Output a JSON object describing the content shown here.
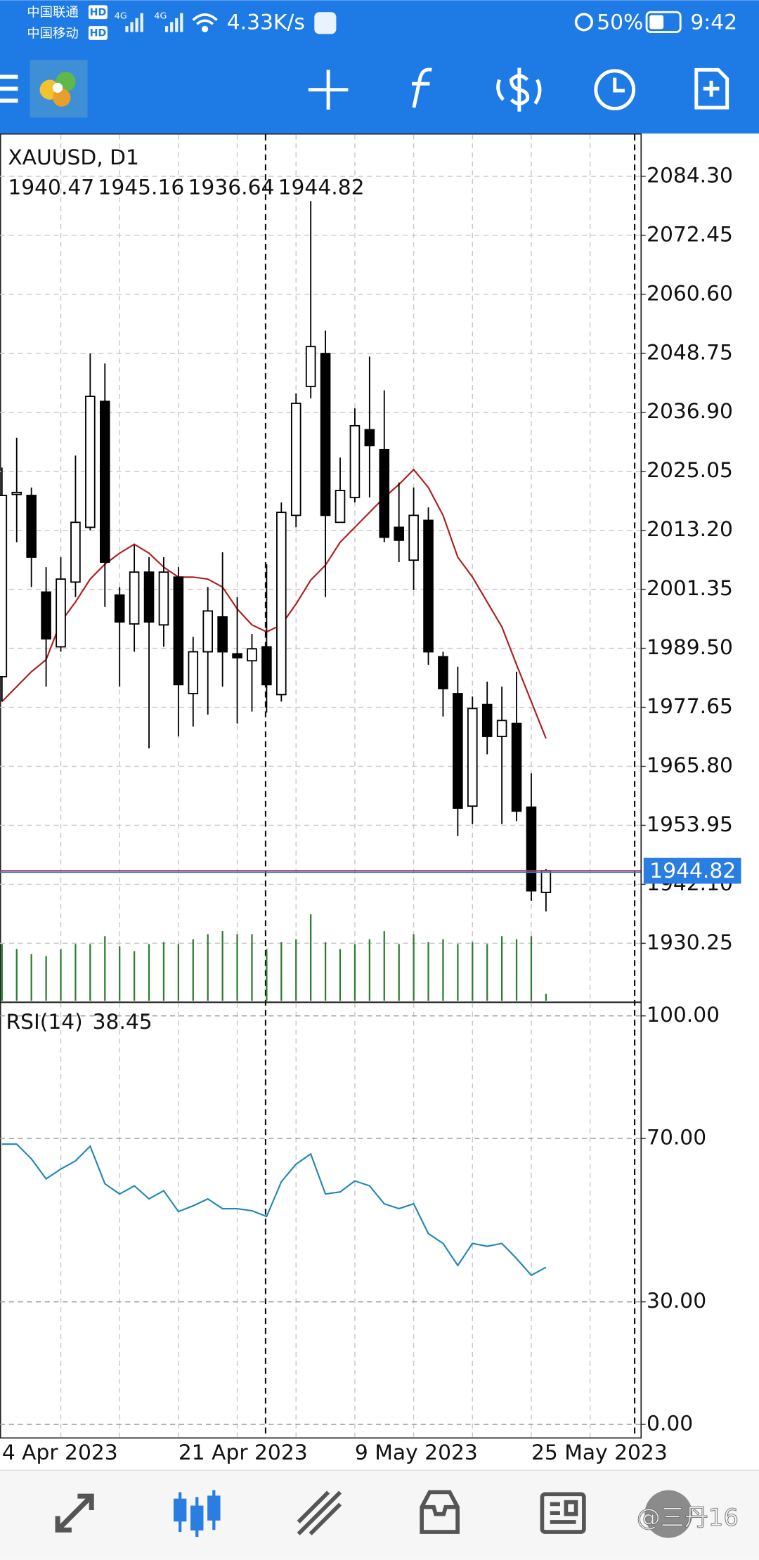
{
  "status_bar": {
    "carrier_1": "中国联通",
    "carrier_2": "中国移动",
    "hd_1": "HD",
    "hd_2": "HD",
    "network_1": "4G",
    "network_2": "4G",
    "speed": "4.33K/s",
    "battery": "50%",
    "time": "9:42"
  },
  "chart_data": [
    {
      "type": "candlestick",
      "title": "XAUUSD, D1",
      "categories": [
        "4 Apr 2023",
        null,
        null,
        null,
        null,
        null,
        null,
        null,
        null,
        null,
        null,
        null,
        "21 Apr 2023",
        null,
        null,
        null,
        null,
        null,
        null,
        null,
        null,
        null,
        null,
        null,
        "9 May 2023",
        null,
        null,
        null,
        null,
        null,
        null,
        null,
        null,
        null,
        null,
        null,
        "25 May 2023",
        null
      ],
      "open": [
        1983.8,
        2020.4,
        2020.2,
        2000.8,
        1989.8,
        2002.8,
        2013.8,
        2039.1,
        2000.2,
        1994.4,
        2004.8,
        1994.2,
        2003.8,
        1980.4,
        1988.8,
        1995.8,
        1988.4,
        1987.0,
        1989.8,
        1980.2,
        2016.2,
        2042.1,
        2048.7,
        2014.8,
        2019.8,
        2033.4,
        2029.4,
        2013.8,
        2007.2,
        2015.2,
        1987.8,
        1980.4,
        1957.8,
        1978.2,
        1971.8,
        1974.4,
        1957.6,
        1940.47
      ],
      "high": [
        2025.8,
        2031.8,
        2021.8,
        2005.8,
        2007.8,
        2028.2,
        2048.7,
        2046.7,
        2001.8,
        2010.2,
        2007.8,
        2007.8,
        2005.8,
        1991.8,
        2001.8,
        2008.8,
        1999.8,
        1992.4,
        2006.4,
        2018.8,
        2040.7,
        2079.3,
        2053.3,
        2027.8,
        2037.7,
        2048.1,
        2041.3,
        2022.8,
        2021.8,
        2017.8,
        1988.8,
        1985.8,
        1979.8,
        1982.8,
        1981.8,
        1984.8,
        1964.4,
        1945.16
      ],
      "low": [
        1978.8,
        2010.8,
        2001.8,
        1981.8,
        1988.8,
        1999.8,
        2013.2,
        1997.8,
        1981.8,
        1988.8,
        1969.4,
        1989.8,
        1971.8,
        1973.8,
        1976.2,
        1981.8,
        1974.4,
        1976.8,
        1976.6,
        1978.8,
        2013.8,
        2039.7,
        1999.8,
        2014.8,
        2018.8,
        2019.8,
        2010.8,
        2006.8,
        2001.2,
        1986.2,
        1975.8,
        1951.8,
        1954.2,
        1968.2,
        1954.2,
        1954.8,
        1938.8,
        1936.64
      ],
      "close": [
        2020.2,
        2020.8,
        2007.8,
        1991.4,
        2003.4,
        2014.8,
        2040.1,
        2006.8,
        1994.8,
        2004.8,
        1994.8,
        2004.8,
        1982.2,
        1988.8,
        1997.0,
        1988.8,
        1987.6,
        1989.4,
        1982.2,
        2016.8,
        2038.7,
        2050.1,
        2016.2,
        2021.2,
        2034.2,
        2030.2,
        2011.8,
        2011.2,
        2016.2,
        1988.8,
        1981.4,
        1957.4,
        1977.4,
        1971.8,
        1975.0,
        1956.8,
        1940.8,
        1944.82
      ],
      "color_up": "#ffffff",
      "color_down": "#000000",
      "moving_average": {
        "color": "#b01c1c",
        "values": [
          1978.8,
          1981.8,
          1984.8,
          1987.2,
          1994.8,
          1998.8,
          2003.4,
          2006.4,
          2008.6,
          2010.4,
          2008.6,
          2005.8,
          2003.8,
          2003.8,
          2003.4,
          2001.8,
          1997.4,
          1994.2,
          1992.8,
          1994.2,
          1998.4,
          2003.2,
          2006.2,
          2010.8,
          2013.8,
          2016.8,
          2019.8,
          2022.4,
          2025.4,
          2021.8,
          2016.2,
          2007.8,
          2003.8,
          1998.8,
          1993.8,
          1986.2,
          1978.8,
          1971.4
        ]
      },
      "volume": {
        "color": "#2e7d32",
        "values": [
          57,
          52,
          47,
          45,
          52,
          57,
          57,
          65,
          55,
          50,
          57,
          59,
          57,
          62,
          67,
          70,
          67,
          67,
          52,
          59,
          62,
          87,
          59,
          52,
          57,
          62,
          70,
          57,
          67,
          59,
          62,
          57,
          59,
          57,
          65,
          62,
          65,
          7
        ]
      },
      "price_line_color": "#2a7de1",
      "ylim": [
        1918.5,
        2092.7
      ],
      "yticks": [
        {
          "value": 2084.3,
          "label": "2084.30"
        },
        2072.45,
        {
          "value": 2060.6,
          "label": "2060.60"
        },
        2048.75,
        {
          "value": 2036.9,
          "label": "2036.90"
        },
        2025.05,
        {
          "value": 2013.2,
          "label": "2013.20"
        },
        2001.35,
        {
          "value": 1989.5,
          "label": "1989.50"
        },
        1977.65,
        {
          "value": 1965.8,
          "label": "1965.80"
        },
        1953.95,
        {
          "value": 1942.1,
          "label": "1942.10"
        },
        1930.25
      ],
      "grid": true
    },
    {
      "type": "line",
      "series": [
        {
          "name": "RSI(14)",
          "color": "#1f86b8",
          "values": [
            68.6,
            68.6,
            65.0,
            60.1,
            62.5,
            64.5,
            68.1,
            58.9,
            56.4,
            58.4,
            55.2,
            57.2,
            52.1,
            53.5,
            55.2,
            52.8,
            52.8,
            52.3,
            50.9,
            59.4,
            63.7,
            66.2,
            56.4,
            56.9,
            59.6,
            58.4,
            54.0,
            52.8,
            54.0,
            46.7,
            44.3,
            38.9,
            44.3,
            43.6,
            44.3,
            40.6,
            36.5,
            38.45
          ]
        }
      ],
      "ylim": [
        -3.2,
        103.2
      ],
      "yticks": [
        {
          "value": 100,
          "label": "100.00"
        },
        {
          "value": 70,
          "label": "70.00"
        },
        {
          "value": 30,
          "label": "30.00"
        },
        {
          "value": 0,
          "label": "0.00"
        }
      ],
      "grid": true
    }
  ],
  "watermark": "@三丹16"
}
